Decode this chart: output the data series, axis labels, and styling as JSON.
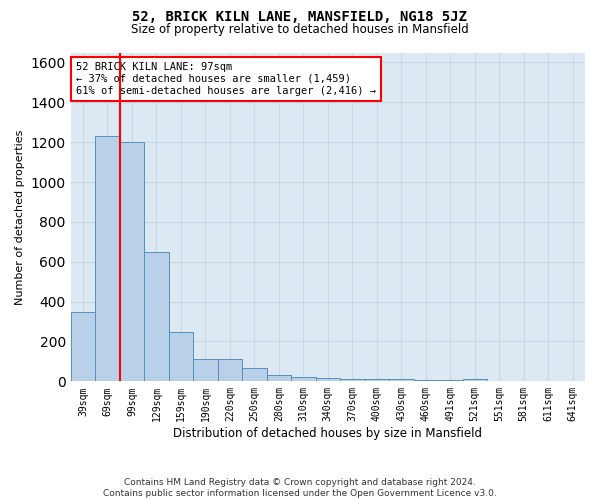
{
  "title": "52, BRICK KILN LANE, MANSFIELD, NG18 5JZ",
  "subtitle": "Size of property relative to detached houses in Mansfield",
  "xlabel": "Distribution of detached houses by size in Mansfield",
  "ylabel": "Number of detached properties",
  "footer": "Contains HM Land Registry data © Crown copyright and database right 2024.\nContains public sector information licensed under the Open Government Licence v3.0.",
  "categories": [
    "39sqm",
    "69sqm",
    "99sqm",
    "129sqm",
    "159sqm",
    "190sqm",
    "220sqm",
    "250sqm",
    "280sqm",
    "310sqm",
    "340sqm",
    "370sqm",
    "400sqm",
    "430sqm",
    "460sqm",
    "491sqm",
    "521sqm",
    "551sqm",
    "581sqm",
    "611sqm",
    "641sqm"
  ],
  "values": [
    350,
    1230,
    1200,
    650,
    250,
    110,
    110,
    65,
    30,
    20,
    15,
    10,
    10,
    10,
    5,
    5,
    10,
    3,
    3,
    3,
    3
  ],
  "bar_color": "#b8d0e8",
  "bar_edge_color": "#5590c0",
  "grid_color": "#c8d8ea",
  "background_color": "#dce8f2",
  "red_line_x": 1.5,
  "annotation_text": "52 BRICK KILN LANE: 97sqm\n← 37% of detached houses are smaller (1,459)\n61% of semi-detached houses are larger (2,416) →",
  "ylim": [
    0,
    1650
  ],
  "yticks": [
    0,
    200,
    400,
    600,
    800,
    1000,
    1200,
    1400,
    1600
  ]
}
